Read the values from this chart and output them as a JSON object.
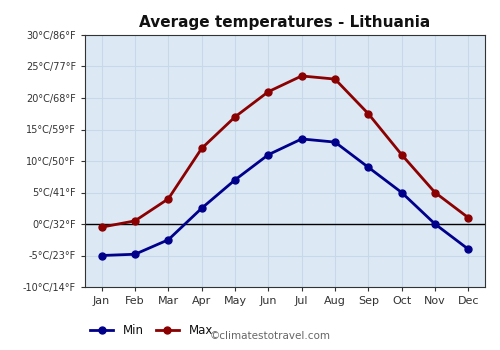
{
  "title": "Average temperatures - Lithuania",
  "months": [
    "Jan",
    "Feb",
    "Mar",
    "Apr",
    "May",
    "Jun",
    "Jul",
    "Aug",
    "Sep",
    "Oct",
    "Nov",
    "Dec"
  ],
  "min_temps": [
    -5,
    -4.8,
    -2.5,
    2.5,
    7,
    11,
    13.5,
    13,
    9,
    5,
    0,
    -4
  ],
  "max_temps": [
    -0.5,
    0.5,
    4,
    12,
    17,
    21,
    23.5,
    23,
    17.5,
    11,
    5,
    1
  ],
  "min_color": "#00008B",
  "max_color": "#8B0000",
  "fig_bg": "#ffffff",
  "plot_bg": "#dce9f5",
  "grid_color": "#c8d8e8",
  "ytick_labels": [
    "-10°C/14°F",
    "-5°C/23°F",
    "0°C/32°F",
    "5°C/41°F",
    "10°C/50°F",
    "15°C/59°F",
    "20°C/68°F",
    "25°C/77°F",
    "30°C/86°F"
  ],
  "ytick_values": [
    -10,
    -5,
    0,
    5,
    10,
    15,
    20,
    25,
    30
  ],
  "ylim": [
    -10,
    30
  ],
  "watermark": "©climatestotravel.com",
  "legend_min": "Min",
  "legend_max": "Max",
  "linewidth": 2.0,
  "markersize": 5
}
